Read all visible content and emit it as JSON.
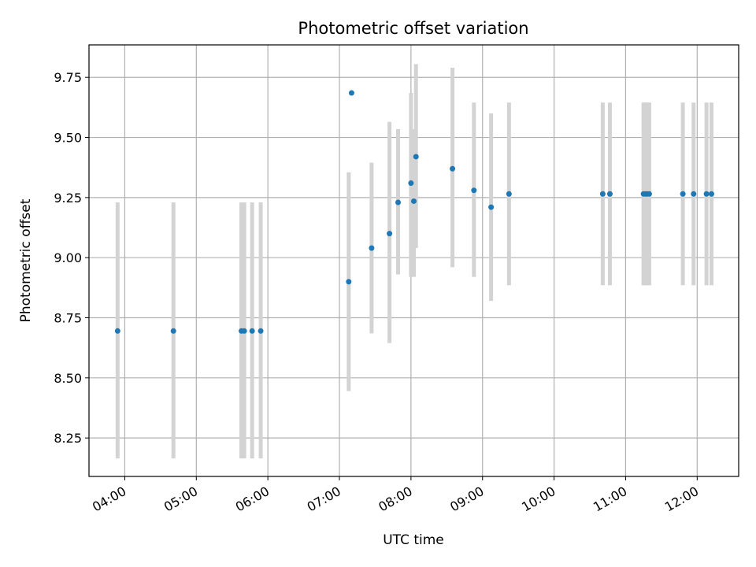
{
  "chart_data": {
    "type": "scatter",
    "title": "Photometric offset variation",
    "xlabel": "UTC time",
    "ylabel": "Photometric offset",
    "x_unit": "hours UTC",
    "xlim": [
      3.5,
      12.58
    ],
    "ylim": [
      8.09,
      9.885
    ],
    "xticks": [
      {
        "value": 4,
        "label": "04:00"
      },
      {
        "value": 5,
        "label": "05:00"
      },
      {
        "value": 6,
        "label": "06:00"
      },
      {
        "value": 7,
        "label": "07:00"
      },
      {
        "value": 8,
        "label": "08:00"
      },
      {
        "value": 9,
        "label": "09:00"
      },
      {
        "value": 10,
        "label": "10:00"
      },
      {
        "value": 11,
        "label": "11:00"
      },
      {
        "value": 12,
        "label": "12:00"
      }
    ],
    "yticks": [
      {
        "value": 8.25,
        "label": "8.25"
      },
      {
        "value": 8.5,
        "label": "8.50"
      },
      {
        "value": 8.75,
        "label": "8.75"
      },
      {
        "value": 9.0,
        "label": "9.00"
      },
      {
        "value": 9.25,
        "label": "9.25"
      },
      {
        "value": 9.5,
        "label": "9.50"
      },
      {
        "value": 9.75,
        "label": "9.75"
      }
    ],
    "grid": true,
    "point_color": "#1f77b4",
    "errorbar_color": "#d3d3d3",
    "points": [
      {
        "x": 3.9,
        "y": 8.695
      },
      {
        "x": 4.68,
        "y": 8.695
      },
      {
        "x": 5.63,
        "y": 8.695
      },
      {
        "x": 5.67,
        "y": 8.695
      },
      {
        "x": 5.78,
        "y": 8.695
      },
      {
        "x": 5.9,
        "y": 8.695
      },
      {
        "x": 7.13,
        "y": 8.9
      },
      {
        "x": 7.17,
        "y": 9.685
      },
      {
        "x": 7.45,
        "y": 9.04
      },
      {
        "x": 7.7,
        "y": 9.1
      },
      {
        "x": 7.82,
        "y": 9.23
      },
      {
        "x": 8.0,
        "y": 9.31
      },
      {
        "x": 8.04,
        "y": 9.235
      },
      {
        "x": 8.07,
        "y": 9.42
      },
      {
        "x": 8.58,
        "y": 9.37
      },
      {
        "x": 8.88,
        "y": 9.28
      },
      {
        "x": 9.12,
        "y": 9.21
      },
      {
        "x": 9.37,
        "y": 9.265
      },
      {
        "x": 10.68,
        "y": 9.265
      },
      {
        "x": 10.78,
        "y": 9.265
      },
      {
        "x": 11.25,
        "y": 9.265
      },
      {
        "x": 11.28,
        "y": 9.265
      },
      {
        "x": 11.3,
        "y": 9.265
      },
      {
        "x": 11.33,
        "y": 9.265
      },
      {
        "x": 11.8,
        "y": 9.265
      },
      {
        "x": 11.95,
        "y": 9.265
      },
      {
        "x": 12.13,
        "y": 9.265
      },
      {
        "x": 12.2,
        "y": 9.265
      }
    ],
    "errorbars": [
      {
        "x": 3.9,
        "low": 8.165,
        "high": 9.23
      },
      {
        "x": 4.68,
        "low": 8.165,
        "high": 9.23
      },
      {
        "x": 5.63,
        "low": 8.165,
        "high": 9.23
      },
      {
        "x": 5.67,
        "low": 8.165,
        "high": 9.23
      },
      {
        "x": 5.78,
        "low": 8.165,
        "high": 9.23
      },
      {
        "x": 5.9,
        "low": 8.165,
        "high": 9.23
      },
      {
        "x": 7.13,
        "low": 8.445,
        "high": 9.355
      },
      {
        "x": 7.45,
        "low": 8.685,
        "high": 9.395
      },
      {
        "x": 7.7,
        "low": 8.645,
        "high": 9.565
      },
      {
        "x": 7.82,
        "low": 8.93,
        "high": 9.535
      },
      {
        "x": 8.0,
        "low": 8.92,
        "high": 9.685
      },
      {
        "x": 8.04,
        "low": 8.92,
        "high": 9.535
      },
      {
        "x": 8.07,
        "low": 9.04,
        "high": 9.805
      },
      {
        "x": 8.58,
        "low": 8.96,
        "high": 9.79
      },
      {
        "x": 8.88,
        "low": 8.92,
        "high": 9.645
      },
      {
        "x": 9.12,
        "low": 8.82,
        "high": 9.6
      },
      {
        "x": 9.37,
        "low": 8.885,
        "high": 9.645
      },
      {
        "x": 10.68,
        "low": 8.885,
        "high": 9.645
      },
      {
        "x": 10.78,
        "low": 8.885,
        "high": 9.645
      },
      {
        "x": 11.25,
        "low": 8.885,
        "high": 9.645
      },
      {
        "x": 11.28,
        "low": 8.885,
        "high": 9.645
      },
      {
        "x": 11.3,
        "low": 8.885,
        "high": 9.645
      },
      {
        "x": 11.33,
        "low": 8.885,
        "high": 9.645
      },
      {
        "x": 11.8,
        "low": 8.885,
        "high": 9.645
      },
      {
        "x": 11.95,
        "low": 8.885,
        "high": 9.645
      },
      {
        "x": 12.13,
        "low": 8.885,
        "high": 9.645
      },
      {
        "x": 12.2,
        "low": 8.885,
        "high": 9.645
      }
    ]
  }
}
